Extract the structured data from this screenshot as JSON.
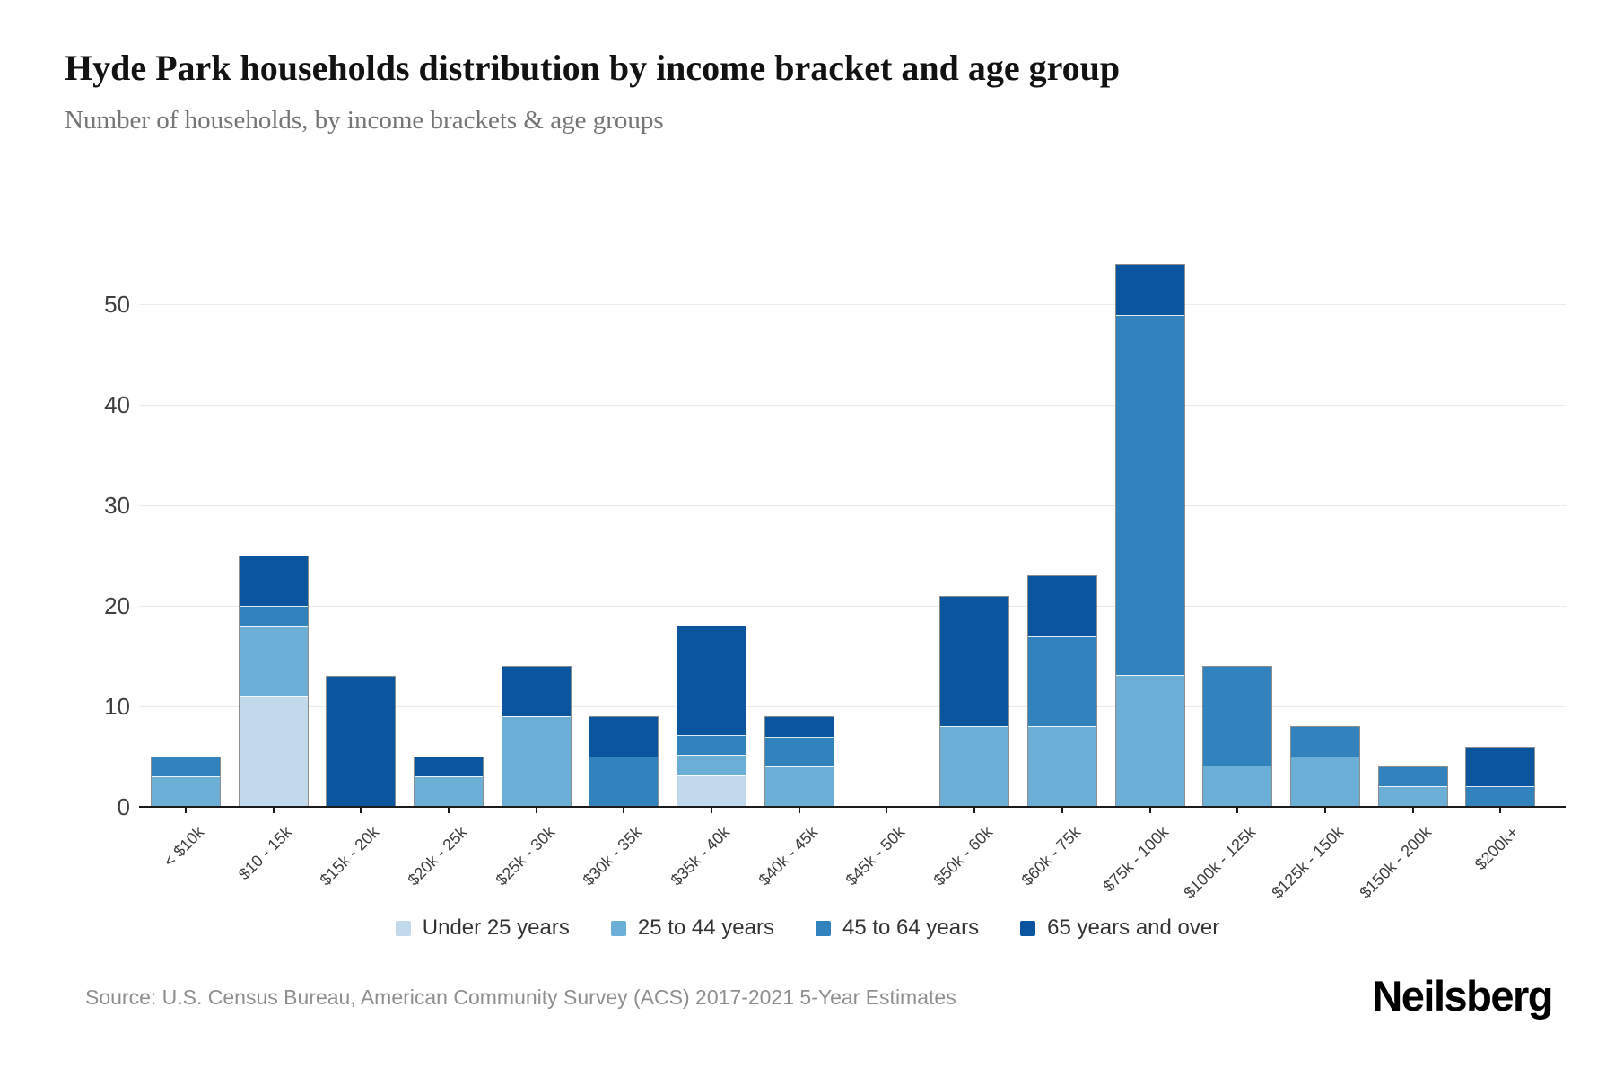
{
  "header": {
    "title": "Hyde Park households distribution by income bracket and age group",
    "subtitle": "Number of households, by income brackets & age groups"
  },
  "footer": {
    "source": "Source: U.S. Census Bureau, American Community Survey (ACS) 2017-2021 5-Year Estimates",
    "brand": "Neilsberg"
  },
  "chart_data": {
    "type": "bar",
    "stacked": true,
    "title": "Hyde Park households distribution by income bracket and age group",
    "subtitle": "Number of households, by income brackets & age groups",
    "xlabel": "",
    "ylabel": "",
    "ylim": [
      0,
      55
    ],
    "yticks": [
      0,
      10,
      20,
      30,
      40,
      50
    ],
    "grid": "horizontal",
    "legend_position": "bottom",
    "categories": [
      "< $10k",
      "$10 - 15k",
      "$15k - 20k",
      "$20k - 25k",
      "$25k - 30k",
      "$30k - 35k",
      "$35k - 40k",
      "$40k - 45k",
      "$45k - 50k",
      "$50k - 60k",
      "$60k - 75k",
      "$75k - 100k",
      "$100k - 125k",
      "$125k - 150k",
      "$150k - 200k",
      "$200k+"
    ],
    "series": [
      {
        "name": "Under 25 years",
        "color": "#c1d9eb",
        "values": [
          0,
          11,
          0,
          0,
          0,
          0,
          3,
          0,
          0,
          0,
          0,
          0,
          0,
          0,
          0,
          0
        ]
      },
      {
        "name": "25 to 44 years",
        "color": "#6baed6",
        "values": [
          3,
          7,
          0,
          3,
          9,
          0,
          2,
          4,
          0,
          8,
          8,
          13,
          4,
          5,
          2,
          0
        ]
      },
      {
        "name": "45 to 64 years",
        "color": "#3182bd",
        "values": [
          2,
          2,
          0,
          0,
          0,
          5,
          2,
          3,
          0,
          0,
          9,
          36,
          10,
          3,
          2,
          2
        ]
      },
      {
        "name": "65 years and over",
        "color": "#0b559f",
        "values": [
          0,
          5,
          13,
          2,
          5,
          4,
          11,
          2,
          0,
          13,
          6,
          5,
          0,
          0,
          0,
          4
        ]
      }
    ],
    "totals": [
      5,
      25,
      13,
      5,
      14,
      9,
      18,
      9,
      0,
      21,
      23,
      54,
      14,
      8,
      4,
      6
    ]
  }
}
